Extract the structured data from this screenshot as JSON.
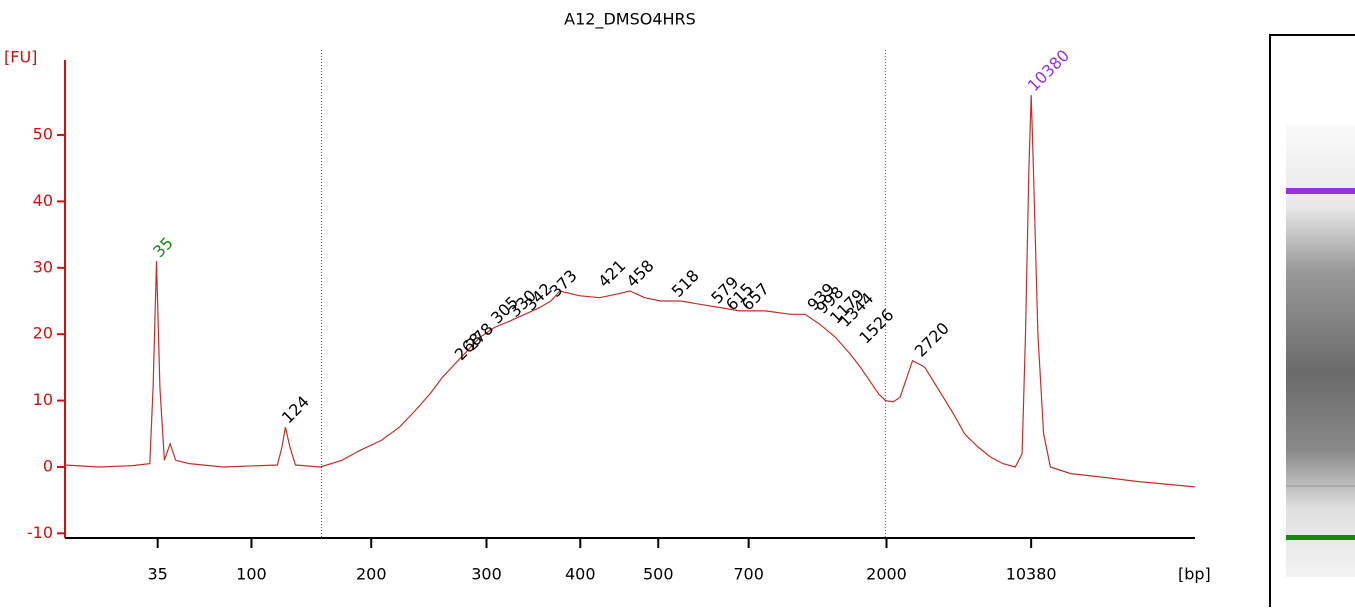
{
  "chart_data": {
    "type": "line",
    "title": "A12_DMSO4HRS",
    "ylabel": "[FU]",
    "xlabel": "[bp]",
    "xlim": [
      0,
      100
    ],
    "ylim": [
      -10.7,
      61.3
    ],
    "yticks": [
      -10,
      0,
      10,
      20,
      30,
      40,
      50
    ],
    "xticks": [
      {
        "value": 8.2,
        "label": "35"
      },
      {
        "value": 16.5,
        "label": "100"
      },
      {
        "value": 27.1,
        "label": "200"
      },
      {
        "value": 37.3,
        "label": "300"
      },
      {
        "value": 45.6,
        "label": "400"
      },
      {
        "value": 52.5,
        "label": "500"
      },
      {
        "value": 60.5,
        "label": "700"
      },
      {
        "value": 72.7,
        "label": "2000"
      },
      {
        "value": 85.5,
        "label": "10380"
      }
    ],
    "x": [
      0,
      3,
      6,
      7.5,
      7.8,
      8.1,
      8.4,
      8.8,
      9.3,
      9.8,
      11,
      14,
      18.8,
      19.2,
      19.5,
      19.9,
      20.4,
      22.6,
      24.5,
      26.1,
      28,
      29.6,
      31,
      32.3,
      33.4,
      34.5,
      35.6,
      36.7,
      38,
      39.4,
      40.7,
      42,
      43,
      43.8,
      45.5,
      47.3,
      48.7,
      50,
      51.3,
      52.7,
      54.5,
      56.2,
      58,
      59.7,
      62,
      64.2,
      65.5,
      66.8,
      68.2,
      69.5,
      70.4,
      71.2,
      72,
      72.6,
      73.3,
      73.9,
      74.5,
      75,
      75.6,
      76.1,
      77,
      77.9,
      78.8,
      79.6,
      80.8,
      81.9,
      83,
      84.1,
      84.7,
      85,
      85.3,
      85.5,
      85.7,
      86.1,
      86.6,
      87.2,
      89,
      91.6,
      95,
      100
    ],
    "series": [
      {
        "name": "A12_DMSO4HRS",
        "color": "#c0302c",
        "axis": "y",
        "values": [
          0.3,
          0,
          0.2,
          0.5,
          12,
          31,
          12,
          1,
          3.5,
          1,
          0.5,
          0,
          0.3,
          3,
          6,
          3,
          0.3,
          0,
          1,
          2.5,
          4,
          6,
          8.5,
          11,
          13.5,
          15.5,
          17.5,
          19.5,
          21,
          22,
          23,
          24,
          25,
          26.5,
          25.8,
          25.5,
          26,
          26.5,
          25.5,
          25,
          25,
          24.5,
          24,
          23.5,
          23.5,
          23,
          23,
          21.5,
          19.5,
          17,
          15,
          13,
          11,
          10,
          9.8,
          10.5,
          13.5,
          16,
          15.5,
          15,
          12.5,
          10,
          7.5,
          5,
          3,
          1.5,
          0.5,
          0,
          2,
          20,
          45,
          56,
          45,
          20,
          5,
          0,
          -1,
          -1.5,
          -2.2,
          -3
        ]
      }
    ],
    "peaks": [
      {
        "label": "35",
        "x": 8.1,
        "y": 31,
        "color": "#1a8a1a"
      },
      {
        "label": "124",
        "x": 19.5,
        "y": 6,
        "color": "#000000"
      },
      {
        "label": "268",
        "x": 34.8,
        "y": 15.5,
        "color": "#000000"
      },
      {
        "label": "278",
        "x": 35.8,
        "y": 17,
        "color": "#000000"
      },
      {
        "label": "305",
        "x": 38,
        "y": 21,
        "color": "#000000"
      },
      {
        "label": "330",
        "x": 39.6,
        "y": 22,
        "color": "#000000"
      },
      {
        "label": "342",
        "x": 41,
        "y": 23,
        "color": "#000000"
      },
      {
        "label": "373",
        "x": 43.2,
        "y": 25,
        "color": "#000000"
      },
      {
        "label": "421",
        "x": 47.5,
        "y": 26.5,
        "color": "#000000"
      },
      {
        "label": "458",
        "x": 50,
        "y": 26.5,
        "color": "#000000"
      },
      {
        "label": "518",
        "x": 54,
        "y": 25,
        "color": "#000000"
      },
      {
        "label": "579",
        "x": 57.5,
        "y": 24,
        "color": "#000000"
      },
      {
        "label": "615",
        "x": 58.8,
        "y": 23,
        "color": "#000000"
      },
      {
        "label": "657",
        "x": 60.2,
        "y": 23,
        "color": "#000000"
      },
      {
        "label": "939",
        "x": 66,
        "y": 23,
        "color": "#000000"
      },
      {
        "label": "998",
        "x": 66.8,
        "y": 22.5,
        "color": "#000000"
      },
      {
        "label": "1179",
        "x": 68,
        "y": 21,
        "color": "#000000"
      },
      {
        "label": "1344",
        "x": 68.8,
        "y": 20.5,
        "color": "#000000"
      },
      {
        "label": "1526",
        "x": 70.6,
        "y": 18,
        "color": "#000000"
      },
      {
        "label": "2720",
        "x": 75.5,
        "y": 16,
        "color": "#000000"
      },
      {
        "label": "10380",
        "x": 85.5,
        "y": 56,
        "color": "#9b30e0"
      }
    ],
    "region_markers": [
      22.7,
      72.6
    ]
  }
}
